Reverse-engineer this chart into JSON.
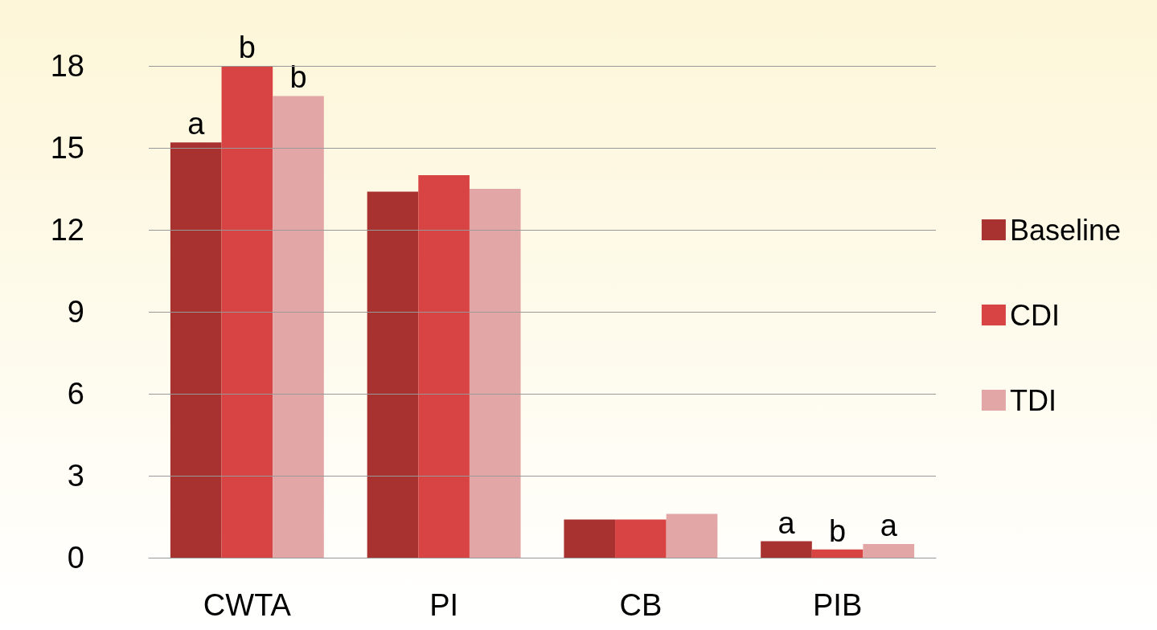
{
  "chart_data": {
    "type": "bar",
    "categories": [
      "CWTA",
      "PI",
      "CB",
      "PIB"
    ],
    "series": [
      {
        "name": "Baseline",
        "color": "#a83230",
        "values": [
          15.2,
          13.4,
          1.4,
          0.6
        ],
        "value_labels": [
          "a",
          null,
          null,
          "a"
        ]
      },
      {
        "name": "CDI",
        "color": "#d84443",
        "values": [
          18.0,
          14.0,
          1.4,
          0.3
        ],
        "value_labels": [
          "b",
          null,
          null,
          "b"
        ]
      },
      {
        "name": "TDI",
        "color": "#e3a6a6",
        "values": [
          16.9,
          13.5,
          1.6,
          0.5
        ],
        "value_labels": [
          "b",
          null,
          null,
          "a"
        ]
      }
    ],
    "ylim": [
      0,
      18
    ],
    "yticks": [
      0,
      3,
      6,
      9,
      12,
      15,
      18
    ],
    "grid": "y",
    "legend": "right"
  }
}
